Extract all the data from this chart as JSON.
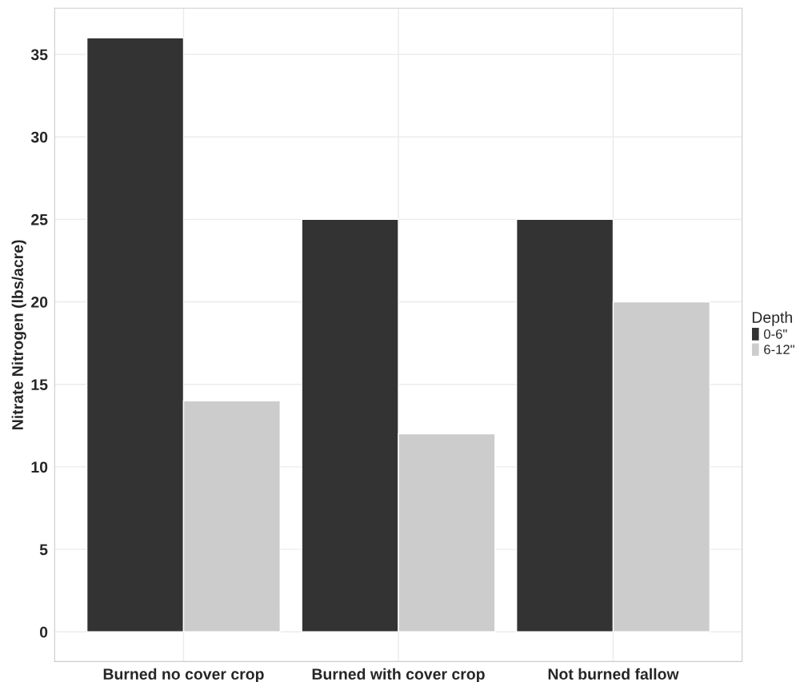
{
  "chart_data": {
    "type": "bar",
    "ylabel": "Nitrate Nitrogen (lbs/acre)",
    "legend_title": "Depth",
    "categories": [
      "Burned no cover crop",
      "Burned with cover crop",
      "Not burned fallow"
    ],
    "series": [
      {
        "name": "0-6\"",
        "color": "#333333",
        "values": [
          36,
          25,
          25
        ]
      },
      {
        "name": "6-12\"",
        "color": "#cccccc",
        "values": [
          14,
          12,
          20
        ]
      }
    ],
    "ylim": [
      -1.8,
      37.8
    ],
    "yticks": [
      0,
      5,
      10,
      15,
      20,
      25,
      30,
      35
    ],
    "grid": true,
    "legend": "right"
  }
}
